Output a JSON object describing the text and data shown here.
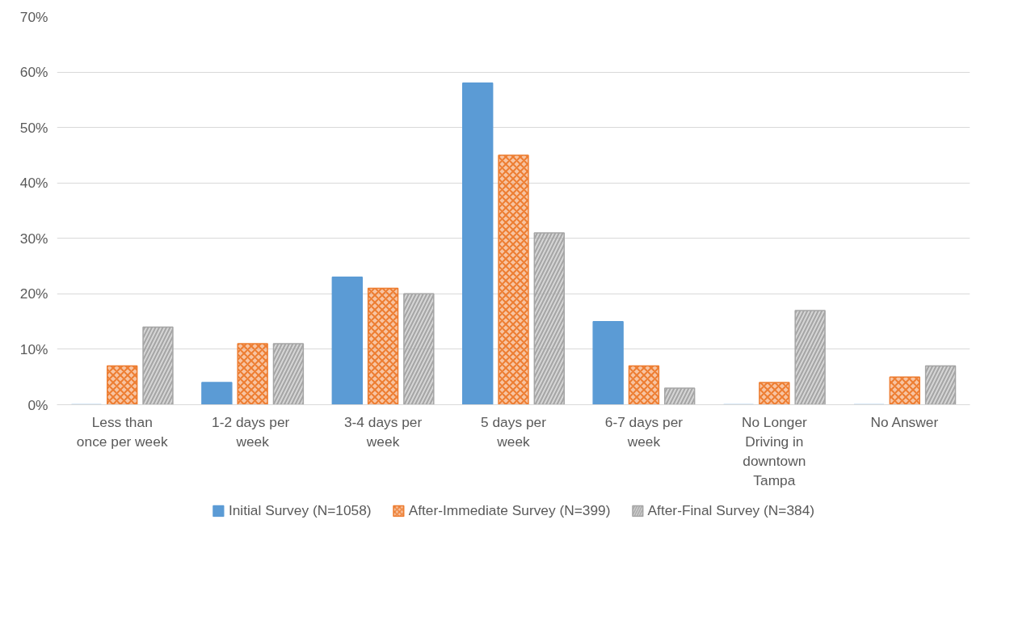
{
  "chart_data": {
    "type": "bar",
    "categories": [
      "Less than once per week",
      "1-2  days per week",
      "3-4 days per week",
      "5 days per week",
      "6-7 days per week",
      "No Longer Driving in downtown Tampa",
      "No Answer"
    ],
    "series": [
      {
        "name": "Initial Survey (N=1058)",
        "color": "#5b9bd5",
        "values": [
          0,
          4,
          23,
          58,
          15,
          0,
          0
        ]
      },
      {
        "name": "After-Immediate Survey (N=399)",
        "color": "#ed7d31",
        "values": [
          7,
          11,
          21,
          45,
          7,
          4,
          5
        ]
      },
      {
        "name": "After-Final Survey (N=384)",
        "color": "#a5a5a5",
        "values": [
          14,
          11,
          20,
          31,
          3,
          17,
          7
        ]
      }
    ],
    "ylim": [
      0,
      70
    ],
    "yticks": [
      {
        "value": 0,
        "label": "0%"
      },
      {
        "value": 10,
        "label": "10%"
      },
      {
        "value": 20,
        "label": "20%"
      },
      {
        "value": 30,
        "label": "30%"
      },
      {
        "value": 40,
        "label": "40%"
      },
      {
        "value": 50,
        "label": "50%"
      },
      {
        "value": 60,
        "label": "60%"
      },
      {
        "value": 70,
        "label": "70%"
      }
    ],
    "grid": "y",
    "legend": "bottom"
  }
}
